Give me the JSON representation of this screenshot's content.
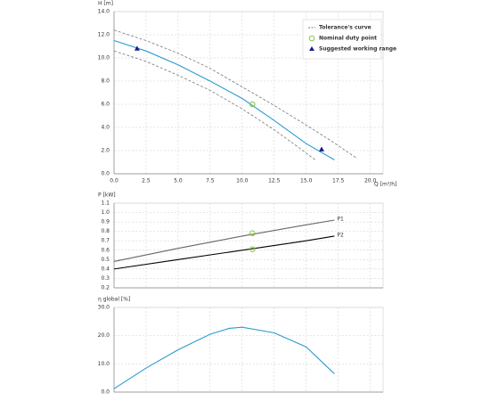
{
  "chart_data": [
    {
      "type": "line",
      "y_label": "H [m]",
      "x_label": "Q [m³/h]",
      "xlim": [
        0,
        21
      ],
      "ylim": [
        0,
        14
      ],
      "xticks": [
        {
          "value": 0,
          "label": "0.0"
        },
        2.5,
        {
          "value": 5,
          "label": "5.0"
        },
        7.5,
        {
          "value": 10,
          "label": "10.0"
        },
        12.5,
        {
          "value": 15,
          "label": "15.0"
        },
        17.5,
        {
          "value": 20,
          "label": "20.0"
        }
      ],
      "yticks": [
        {
          "value": 0,
          "label": "0.0"
        },
        {
          "value": 2,
          "label": "2.0"
        },
        {
          "value": 4,
          "label": "4.0"
        },
        {
          "value": 6,
          "label": "6.0"
        },
        {
          "value": 8,
          "label": "8.0"
        },
        {
          "value": 10,
          "label": "10.0"
        },
        {
          "value": 12,
          "label": "12.0"
        },
        {
          "value": 14,
          "label": "14.0"
        }
      ],
      "grid": true,
      "legend": "upper right",
      "series": [
        {
          "name": "Tolerance's curve",
          "color": "#777777",
          "style": "dashed",
          "x": [
            0,
            2.5,
            5,
            7.5,
            10,
            12.5,
            15,
            17,
            19
          ],
          "values": [
            12.4,
            11.5,
            10.4,
            9.1,
            7.5,
            5.9,
            4.2,
            2.8,
            1.3
          ]
        },
        {
          "color": "#777777",
          "style": "dashed",
          "x": [
            0,
            2.5,
            5,
            7.5,
            10,
            12.5,
            14.5,
            15.7
          ],
          "values": [
            10.6,
            9.7,
            8.5,
            7.2,
            5.6,
            3.8,
            2.2,
            1.2
          ]
        },
        {
          "color": "#2b9bd0",
          "style": "solid",
          "x": [
            0,
            2.5,
            5,
            7.5,
            10,
            12.5,
            15,
            17.2
          ],
          "values": [
            11.5,
            10.6,
            9.4,
            8.0,
            6.5,
            4.6,
            2.6,
            1.2
          ]
        },
        {
          "name": "Nominal duty point",
          "color": "#8bc34a",
          "style": "circle",
          "x": [
            10.8
          ],
          "values": [
            6.0
          ]
        },
        {
          "name": "Suggested working range",
          "color": "#1a1a8c",
          "style": "triangle",
          "x": [
            1.8,
            16.2
          ],
          "values": [
            10.8,
            2.1
          ]
        }
      ]
    },
    {
      "type": "line",
      "y_label": "P [kW]",
      "xlim": [
        0,
        21
      ],
      "ylim": [
        0.2,
        1.1
      ],
      "yticks": [
        0.2,
        0.3,
        0.4,
        0.5,
        0.6,
        0.7,
        0.8,
        0.9,
        {
          "value": 1,
          "label": "1.0"
        },
        1.1
      ],
      "grid": true,
      "series": [
        {
          "name": "P1",
          "color": "#666666",
          "style": "solid",
          "x": [
            0,
            5,
            10,
            15,
            17.2
          ],
          "values": [
            0.48,
            0.62,
            0.75,
            0.87,
            0.92
          ]
        },
        {
          "name": "P2",
          "color": "#000000",
          "style": "solid",
          "x": [
            0,
            5,
            10,
            15,
            17.2
          ],
          "values": [
            0.4,
            0.5,
            0.6,
            0.7,
            0.75
          ]
        },
        {
          "color": "#8bc34a",
          "style": "circle",
          "x": [
            10.8,
            10.8
          ],
          "values": [
            0.78,
            0.61
          ]
        }
      ]
    },
    {
      "type": "line",
      "y_label": "η global [%]",
      "xlim": [
        0,
        21
      ],
      "ylim": [
        0,
        30
      ],
      "yticks": [
        {
          "value": 0,
          "label": "0.0"
        },
        {
          "value": 10,
          "label": "10.0"
        },
        {
          "value": 20,
          "label": "20.0"
        },
        {
          "value": 30,
          "label": "30.0"
        }
      ],
      "grid": true,
      "series": [
        {
          "color": "#2b9bd0",
          "style": "solid",
          "x": [
            0,
            2.5,
            5,
            7.5,
            9,
            10,
            12.5,
            15,
            17.2
          ],
          "values": [
            1.2,
            8.5,
            15,
            20.5,
            22.6,
            23,
            21,
            16,
            6.5
          ]
        }
      ]
    }
  ]
}
